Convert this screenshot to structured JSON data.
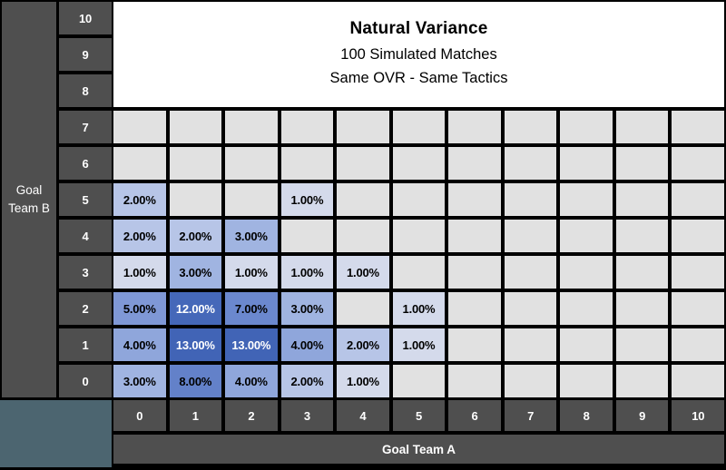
{
  "colors": {
    "background": "#000000",
    "header_fill": "#4f4f4f",
    "corner_fill": "#4c6570",
    "title_panel_fill": "#ffffff",
    "text_light": "#ffffff",
    "text_dark": "#000000"
  },
  "chart_data": {
    "type": "heatmap",
    "title": "Natural Variance",
    "subtitle_lines": [
      "100 Simulated Matches",
      "Same OVR - Same Tactics"
    ],
    "xlabel": "Goal Team A",
    "ylabel": "Goal Team B",
    "x_ticks": [
      "0",
      "1",
      "2",
      "3",
      "4",
      "5",
      "6",
      "7",
      "8",
      "9",
      "10"
    ],
    "y_ticks_top_to_bottom": [
      "10",
      "9",
      "8",
      "7",
      "6",
      "5",
      "4",
      "3",
      "2",
      "1",
      "0"
    ],
    "title_panel_covers_rows": [
      "10",
      "9",
      "8"
    ],
    "unit": "percent of 100 simulated matches",
    "value_format": "0.00%",
    "rows": [
      {
        "y": "7",
        "values": [
          null,
          null,
          null,
          null,
          null,
          null,
          null,
          null,
          null,
          null,
          null
        ]
      },
      {
        "y": "6",
        "values": [
          null,
          null,
          null,
          null,
          null,
          null,
          null,
          null,
          null,
          null,
          null
        ]
      },
      {
        "y": "5",
        "values": [
          2,
          null,
          null,
          1,
          null,
          null,
          null,
          null,
          null,
          null,
          null
        ]
      },
      {
        "y": "4",
        "values": [
          2,
          2,
          3,
          null,
          null,
          null,
          null,
          null,
          null,
          null,
          null
        ]
      },
      {
        "y": "3",
        "values": [
          1,
          3,
          1,
          1,
          1,
          null,
          null,
          null,
          null,
          null,
          null
        ]
      },
      {
        "y": "2",
        "values": [
          5,
          12,
          7,
          3,
          null,
          1,
          null,
          null,
          null,
          null,
          null
        ]
      },
      {
        "y": "1",
        "values": [
          4,
          13,
          13,
          4,
          2,
          1,
          null,
          null,
          null,
          null,
          null
        ]
      },
      {
        "y": "0",
        "values": [
          3,
          8,
          4,
          2,
          1,
          null,
          null,
          null,
          null,
          null,
          null
        ]
      }
    ],
    "color_scale": {
      "0": "#e1e1e1",
      "1": "#d4daeb",
      "2": "#b7c5e7",
      "3": "#a0b4e1",
      "4": "#8fa6db",
      "5": "#7f98d6",
      "7": "#6b88ce",
      "8": "#6381c9",
      "12": "#4568b9",
      "13": "#4164b6"
    },
    "light_text_threshold": 12
  }
}
